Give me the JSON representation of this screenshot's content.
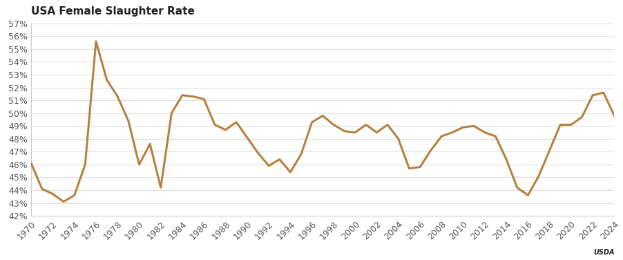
{
  "chart_data": {
    "type": "line",
    "title": "USA Female Slaughter Rate",
    "annotations": [
      "USDA"
    ],
    "x": [
      1970,
      1971,
      1972,
      1973,
      1974,
      1975,
      1976,
      1977,
      1978,
      1979,
      1980,
      1981,
      1982,
      1983,
      1984,
      1985,
      1986,
      1987,
      1988,
      1989,
      1990,
      1991,
      1992,
      1993,
      1994,
      1995,
      1996,
      1997,
      1998,
      1999,
      2000,
      2001,
      2002,
      2003,
      2004,
      2005,
      2006,
      2007,
      2008,
      2009,
      2010,
      2011,
      2012,
      2013,
      2014,
      2015,
      2016,
      2017,
      2018,
      2019,
      2020,
      2021,
      2022,
      2023,
      2024
    ],
    "values": [
      46.1,
      44.1,
      43.7,
      43.1,
      43.6,
      46.0,
      55.6,
      52.6,
      51.3,
      49.4,
      46.0,
      47.6,
      44.2,
      50.0,
      51.4,
      51.3,
      51.1,
      49.1,
      48.7,
      49.3,
      48.1,
      46.9,
      45.9,
      46.4,
      45.4,
      46.8,
      49.3,
      49.8,
      49.1,
      48.6,
      48.5,
      49.1,
      48.5,
      49.1,
      48.0,
      45.7,
      45.8,
      47.1,
      48.2,
      48.5,
      48.9,
      49.0,
      48.5,
      48.2,
      46.4,
      44.2,
      43.6,
      45.1,
      47.1,
      49.1,
      49.1,
      49.7,
      51.4,
      51.6,
      49.8
    ],
    "color": "#b5813e",
    "xlim": [
      1970,
      2024
    ],
    "xticks": [
      1970,
      1972,
      1974,
      1976,
      1978,
      1980,
      1982,
      1984,
      1986,
      1988,
      1990,
      1992,
      1994,
      1996,
      1998,
      2000,
      2002,
      2004,
      2006,
      2008,
      2010,
      2012,
      2014,
      2016,
      2018,
      2020,
      2022,
      2024
    ],
    "ylim": [
      42,
      57
    ],
    "yticks": [
      {
        "value": 42,
        "label": "42%"
      },
      {
        "value": 43,
        "label": "43%"
      },
      {
        "value": 44,
        "label": "44%"
      },
      {
        "value": 45,
        "label": "45%"
      },
      {
        "value": 46,
        "label": "46%"
      },
      {
        "value": 47,
        "label": "47%"
      },
      {
        "value": 48,
        "label": "48%"
      },
      {
        "value": 49,
        "label": "49%"
      },
      {
        "value": 50,
        "label": "50%"
      },
      {
        "value": 51,
        "label": "51%"
      },
      {
        "value": 52,
        "label": "52%"
      },
      {
        "value": 53,
        "label": "53%"
      },
      {
        "value": 54,
        "label": "54%"
      },
      {
        "value": 55,
        "label": "55%"
      },
      {
        "value": 56,
        "label": "56%"
      },
      {
        "value": 57,
        "label": "57%"
      }
    ],
    "grid": true
  }
}
